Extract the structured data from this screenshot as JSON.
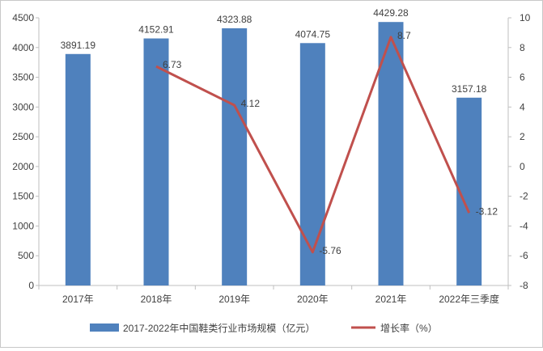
{
  "chart_data": {
    "type": "bar",
    "categories": [
      "2017年",
      "2018年",
      "2019年",
      "2020年",
      "2021年",
      "2022年三季度"
    ],
    "series": [
      {
        "name": "2017-2022年中国鞋类行业市场规模（亿元）",
        "type": "bar",
        "axis": "left",
        "values": [
          3891.19,
          4152.91,
          4323.88,
          4074.75,
          4429.28,
          3157.18
        ],
        "labels": [
          "3891.19",
          "4152.91",
          "4323.88",
          "4074.75",
          "4429.28",
          "3157.18"
        ]
      },
      {
        "name": "增长率（%）",
        "type": "line",
        "axis": "right",
        "values": [
          null,
          6.73,
          4.12,
          -5.76,
          8.7,
          -3.12
        ],
        "labels": [
          "",
          "6.73",
          "4.12",
          "-5.76",
          "8.7",
          "-3.12"
        ]
      }
    ],
    "y_left": {
      "min": 0,
      "max": 4500,
      "ticks": [
        "0",
        "500",
        "1000",
        "1500",
        "2000",
        "2500",
        "3000",
        "3500",
        "4000",
        "4500"
      ]
    },
    "y_right": {
      "min": -8,
      "max": 10,
      "ticks": [
        "-8",
        "-6",
        "-4",
        "-2",
        "0",
        "2",
        "4",
        "6",
        "8",
        "10"
      ]
    },
    "grid": false,
    "legend_position": "bottom",
    "colors": {
      "bar": "#4f81bd",
      "line": "#c0504d",
      "axis": "#bfbfbf",
      "text": "#404040"
    }
  }
}
